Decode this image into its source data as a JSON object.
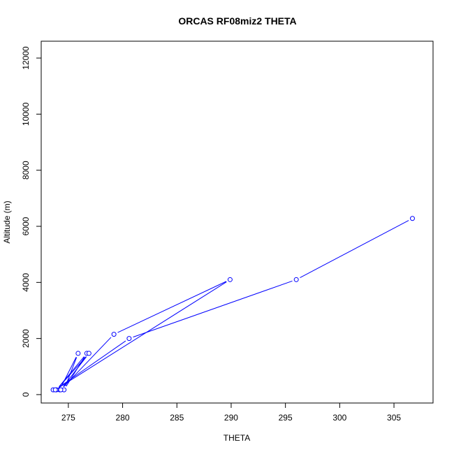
{
  "chart_data": {
    "type": "line",
    "title": "ORCAS RF08miz2 THETA",
    "xlabel": "THETA",
    "ylabel": "Altitude (m)",
    "xlim": [
      272.5,
      308.6
    ],
    "ylim": [
      -300,
      12600
    ],
    "x_ticks": [
      275,
      280,
      285,
      290,
      295,
      300,
      305
    ],
    "y_ticks": [
      0,
      2000,
      4000,
      6000,
      8000,
      10000,
      12000
    ],
    "grid": false,
    "legend": "none",
    "color": "#0000ff",
    "series": [
      {
        "x": [
          273.6,
          274.2,
          275.9,
          274.6,
          276.7,
          273.9,
          276.9,
          274.3,
          279.2,
          289.9,
          273.8,
          280.6,
          296.0,
          306.7
        ],
        "y": [
          170,
          170,
          1470,
          170,
          1470,
          170,
          1470,
          170,
          2150,
          4100,
          170,
          2000,
          4100,
          6280
        ]
      }
    ]
  }
}
